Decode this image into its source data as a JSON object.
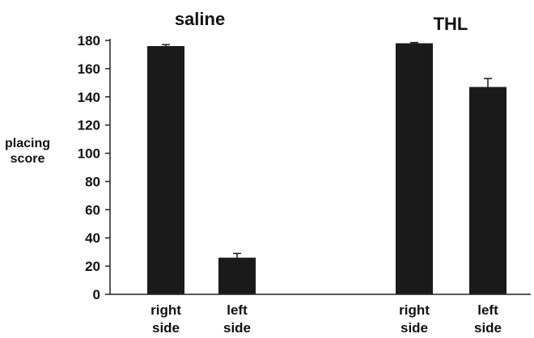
{
  "chart_data": {
    "type": "bar",
    "group_titles": [
      "saline",
      "THL"
    ],
    "categories": [
      "right side",
      "left side",
      "right side",
      "left side"
    ],
    "category_lines": [
      [
        "right",
        "side"
      ],
      [
        "left",
        "side"
      ],
      [
        "right",
        "side"
      ],
      [
        "left",
        "side"
      ]
    ],
    "group_index": [
      0,
      0,
      1,
      1
    ],
    "values": [
      176,
      26,
      178,
      147
    ],
    "errors": [
      1,
      3,
      0.5,
      6
    ],
    "ylabel_lines": [
      "placing",
      "score"
    ],
    "xlabel": "",
    "ylim": [
      0,
      180
    ],
    "yticks": [
      0,
      20,
      40,
      60,
      80,
      100,
      120,
      140,
      160,
      180
    ],
    "grid": false,
    "colors": {
      "bar": "#1a1a1a",
      "axis": "#222222"
    }
  }
}
